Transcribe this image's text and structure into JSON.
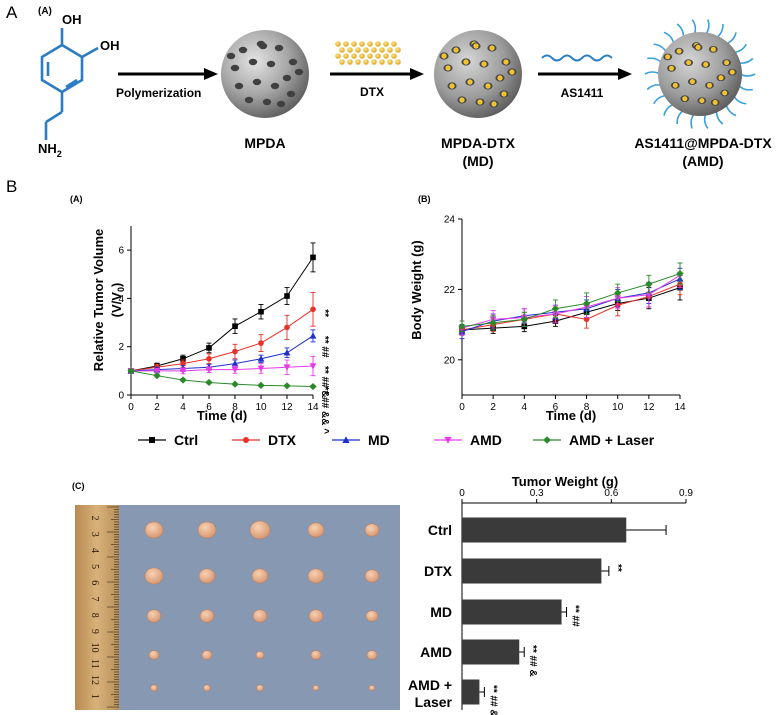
{
  "figure": {
    "panel_a_letter": "A",
    "panel_b_letter": "B",
    "scheme": {
      "sublabel": "(A)",
      "oh_top": "OH",
      "oh_right": "OH",
      "amine": "NH",
      "amine_sub": "2",
      "step1": "Polymerization",
      "step2": "DTX",
      "step3": "AS1411",
      "product1": "MPDA",
      "product2_line1": "MPDA-DTX",
      "product2_line2": "(MD)",
      "product3_line1": "AS1411@MPDA-DTX",
      "product3_line2": "(AMD)"
    },
    "legend": [
      "Ctrl",
      "DTX",
      "MD",
      "AMD",
      "AMD + Laser"
    ],
    "colors": {
      "Ctrl": "#000000",
      "DTX": "#e8312a",
      "MD": "#1f2fcf",
      "AMD": "#e83be8",
      "AMD + Laser": "#2a8a2a",
      "bar": "#3a3a3a",
      "dopamine": "#2a7cc4",
      "mpda": "#8a8a8a",
      "drug": "#f2c230",
      "aptamer": "#3aa0d8",
      "tumor": "#e9b18e",
      "ruler": "#c9a06a",
      "photo_bg": "#7f8faa"
    },
    "photo": {
      "sublabel": "(C)",
      "ruler_numbers": [
        "2",
        "3",
        "4",
        "5",
        "6",
        "7",
        "8",
        "9",
        "10",
        "11",
        "12",
        "1"
      ]
    }
  },
  "chart_data": [
    {
      "type": "line",
      "panel": "(A)",
      "title": "",
      "xlabel": "Time (d)",
      "ylabel": "Relative Tumor Volume",
      "ylabel_line2": "(V/V",
      "ylabel_sub": "0",
      "ylabel_close": ")",
      "x": [
        0,
        2,
        4,
        6,
        8,
        10,
        12,
        14
      ],
      "xticks": [
        "0",
        "2",
        "4",
        "6",
        "8",
        "10",
        "12",
        "14"
      ],
      "yticks": [
        "0",
        "2",
        "4",
        "6"
      ],
      "xlim": [
        0,
        14
      ],
      "ylim": [
        0,
        7
      ],
      "series": [
        {
          "name": "Ctrl",
          "marker": "square",
          "values": [
            1.0,
            1.2,
            1.5,
            1.95,
            2.85,
            3.45,
            4.1,
            5.7
          ],
          "err": [
            0.1,
            0.12,
            0.15,
            0.2,
            0.3,
            0.3,
            0.35,
            0.6
          ]
        },
        {
          "name": "DTX",
          "marker": "circle",
          "values": [
            1.0,
            1.15,
            1.3,
            1.5,
            1.8,
            2.15,
            2.8,
            3.55
          ],
          "err": [
            0.1,
            0.12,
            0.15,
            0.2,
            0.3,
            0.35,
            0.5,
            0.7
          ]
        },
        {
          "name": "MD",
          "marker": "triangle-up",
          "values": [
            1.0,
            1.05,
            1.1,
            1.15,
            1.3,
            1.5,
            1.75,
            2.45
          ],
          "err": [
            0.1,
            0.1,
            0.12,
            0.12,
            0.15,
            0.15,
            0.2,
            0.25
          ]
        },
        {
          "name": "AMD",
          "marker": "triangle-down",
          "values": [
            1.0,
            1.0,
            1.0,
            1.05,
            1.05,
            1.1,
            1.15,
            1.2
          ],
          "err": [
            0.1,
            0.1,
            0.12,
            0.12,
            0.15,
            0.2,
            0.3,
            0.4
          ]
        },
        {
          "name": "AMD + Laser",
          "marker": "diamond",
          "values": [
            1.0,
            0.8,
            0.62,
            0.52,
            0.45,
            0.4,
            0.38,
            0.35
          ],
          "err": [
            0.05,
            0.05,
            0.05,
            0.05,
            0.04,
            0.04,
            0.04,
            0.04
          ]
        }
      ],
      "annotations": [
        {
          "series": "DTX",
          "text": "**"
        },
        {
          "series": "MD",
          "text": "** ##"
        },
        {
          "series": "AMD",
          "text": "** ## &"
        },
        {
          "series": "AMD + Laser",
          "text": "** ## && ^"
        }
      ]
    },
    {
      "type": "line",
      "panel": "(B)",
      "title": "",
      "xlabel": "Time (d)",
      "ylabel": "Body Weight (g)",
      "x": [
        0,
        2,
        4,
        6,
        8,
        10,
        12,
        14
      ],
      "xticks": [
        "0",
        "2",
        "4",
        "6",
        "8",
        "10",
        "12",
        "14"
      ],
      "yticks": [
        "20",
        "22",
        "24"
      ],
      "xlim": [
        0,
        14
      ],
      "ylim": [
        19,
        24
      ],
      "series": [
        {
          "name": "Ctrl",
          "marker": "square",
          "values": [
            20.85,
            20.9,
            20.95,
            21.1,
            21.35,
            21.6,
            21.75,
            22.05
          ],
          "err": [
            0.15,
            0.15,
            0.15,
            0.15,
            0.2,
            0.2,
            0.3,
            0.35
          ]
        },
        {
          "name": "DTX",
          "marker": "circle",
          "values": [
            20.85,
            21.0,
            21.15,
            21.3,
            21.15,
            21.55,
            21.8,
            22.15
          ],
          "err": [
            0.15,
            0.2,
            0.2,
            0.2,
            0.25,
            0.3,
            0.3,
            0.3
          ]
        },
        {
          "name": "MD",
          "marker": "triangle-up",
          "values": [
            20.8,
            21.1,
            21.25,
            21.35,
            21.45,
            21.75,
            21.9,
            22.3
          ],
          "err": [
            0.2,
            0.2,
            0.2,
            0.2,
            0.25,
            0.25,
            0.3,
            0.3
          ]
        },
        {
          "name": "AMD",
          "marker": "triangle-down",
          "values": [
            20.9,
            21.15,
            21.2,
            21.3,
            21.5,
            21.75,
            21.85,
            22.4
          ],
          "err": [
            0.2,
            0.25,
            0.25,
            0.25,
            0.3,
            0.3,
            0.35,
            0.35
          ]
        },
        {
          "name": "AMD + Laser",
          "marker": "diamond",
          "values": [
            20.95,
            21.05,
            21.15,
            21.45,
            21.6,
            21.9,
            22.15,
            22.45
          ],
          "err": [
            0.15,
            0.2,
            0.2,
            0.25,
            0.3,
            0.25,
            0.25,
            0.3
          ]
        }
      ]
    },
    {
      "type": "bar",
      "orientation": "horizontal",
      "title": "Tumor Weight (g)",
      "categories": [
        "Ctrl",
        "DTX",
        "MD",
        "AMD",
        "AMD + Laser"
      ],
      "category_lines": [
        [
          "Ctrl"
        ],
        [
          "DTX"
        ],
        [
          "MD"
        ],
        [
          "AMD"
        ],
        [
          "AMD +",
          "Laser"
        ]
      ],
      "values": [
        0.66,
        0.56,
        0.4,
        0.23,
        0.07
      ],
      "err": [
        0.16,
        0.03,
        0.02,
        0.02,
        0.02
      ],
      "xticks": [
        "0",
        "0.3",
        "0.6",
        "0.9"
      ],
      "xlim": [
        0,
        0.9
      ],
      "annotations": [
        "",
        "**",
        "** ##",
        "** ## &",
        "** ## && ^"
      ]
    }
  ]
}
